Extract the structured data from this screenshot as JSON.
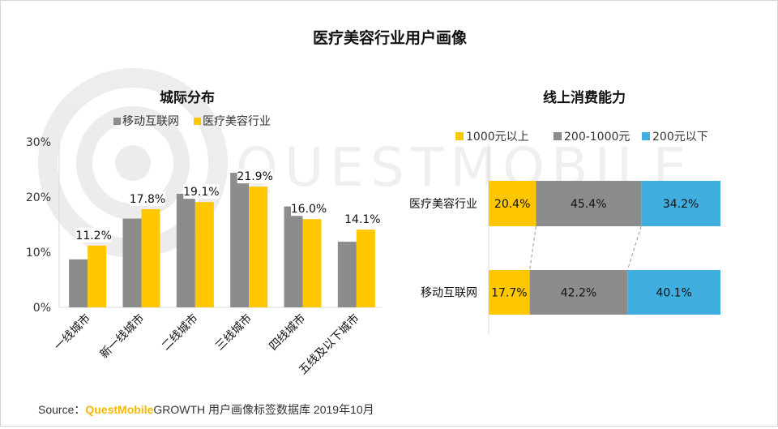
{
  "page_title": "医疗美容行业用户画像",
  "watermark": "QUESTMOBILE",
  "colors": {
    "gray": "#8c8c8c",
    "yellow": "#ffc700",
    "blue": "#41aee0"
  },
  "chart_data": [
    {
      "type": "bar",
      "title": "城际分布",
      "categories": [
        "一线城市",
        "新一线城市",
        "二线城市",
        "三线城市",
        "四线城市",
        "五线及以下城市"
      ],
      "series": [
        {
          "name": "移动互联网",
          "values": [
            8.7,
            16.1,
            20.6,
            24.4,
            18.3,
            11.9
          ]
        },
        {
          "name": "医疗美容行业",
          "values": [
            11.2,
            17.8,
            19.1,
            21.9,
            16.0,
            14.1
          ],
          "labels": [
            "11.2%",
            "17.8%",
            "19.1%",
            "21.9%",
            "16.0%",
            "14.1%"
          ]
        }
      ],
      "ylim": [
        0,
        30
      ],
      "yticks": [
        "0%",
        "10%",
        "20%",
        "30%"
      ],
      "legend": "top"
    },
    {
      "type": "bar",
      "stacked": true,
      "percent": true,
      "orientation": "horizontal",
      "title": "线上消费能力",
      "categories": [
        "医疗美容行业",
        "移动互联网"
      ],
      "series": [
        {
          "name": "1000元以上",
          "values": [
            20.4,
            17.7
          ],
          "labels": [
            "20.4%",
            "17.7%"
          ]
        },
        {
          "name": "200-1000元",
          "values": [
            45.4,
            42.2
          ],
          "labels": [
            "45.4%",
            "42.2%"
          ]
        },
        {
          "name": "200元以下",
          "values": [
            34.2,
            40.1
          ],
          "labels": [
            "34.2%",
            "40.1%"
          ]
        }
      ],
      "legend": "top"
    }
  ],
  "source": {
    "prefix": "Source：",
    "brand": "QuestMobile",
    "text": "GROWTH 用户画像标签数据库  2019年10月"
  }
}
